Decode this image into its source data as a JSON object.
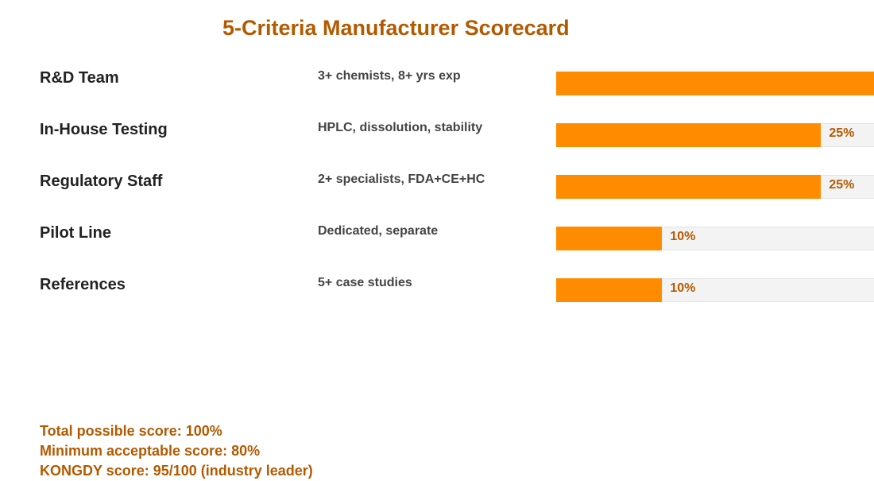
{
  "chart_data": {
    "type": "bar",
    "title": "5-Criteria Manufacturer Scorecard",
    "scale_max": 30,
    "criteria": [
      {
        "label": "R&D Team",
        "description": "3+ chemists, 8+ yrs exp",
        "value": 30,
        "value_label": ""
      },
      {
        "label": "In-House Testing",
        "description": "HPLC, dissolution, stability",
        "value": 25,
        "value_label": "25%"
      },
      {
        "label": "Regulatory Staff",
        "description": "2+ specialists, FDA+CE+HC",
        "value": 25,
        "value_label": "25%"
      },
      {
        "label": "Pilot Line",
        "description": "Dedicated, separate",
        "value": 10,
        "value_label": "10%"
      },
      {
        "label": "References",
        "description": "5+ case studies",
        "value": 10,
        "value_label": "10%"
      }
    ],
    "bar_color": "#ff8c00",
    "track_color": "#f3f3f3"
  },
  "footer": {
    "lines": [
      "Total possible score: 100%",
      "Minimum acceptable score: 80%",
      "KONGDY score: 95/100 (industry leader)"
    ]
  }
}
